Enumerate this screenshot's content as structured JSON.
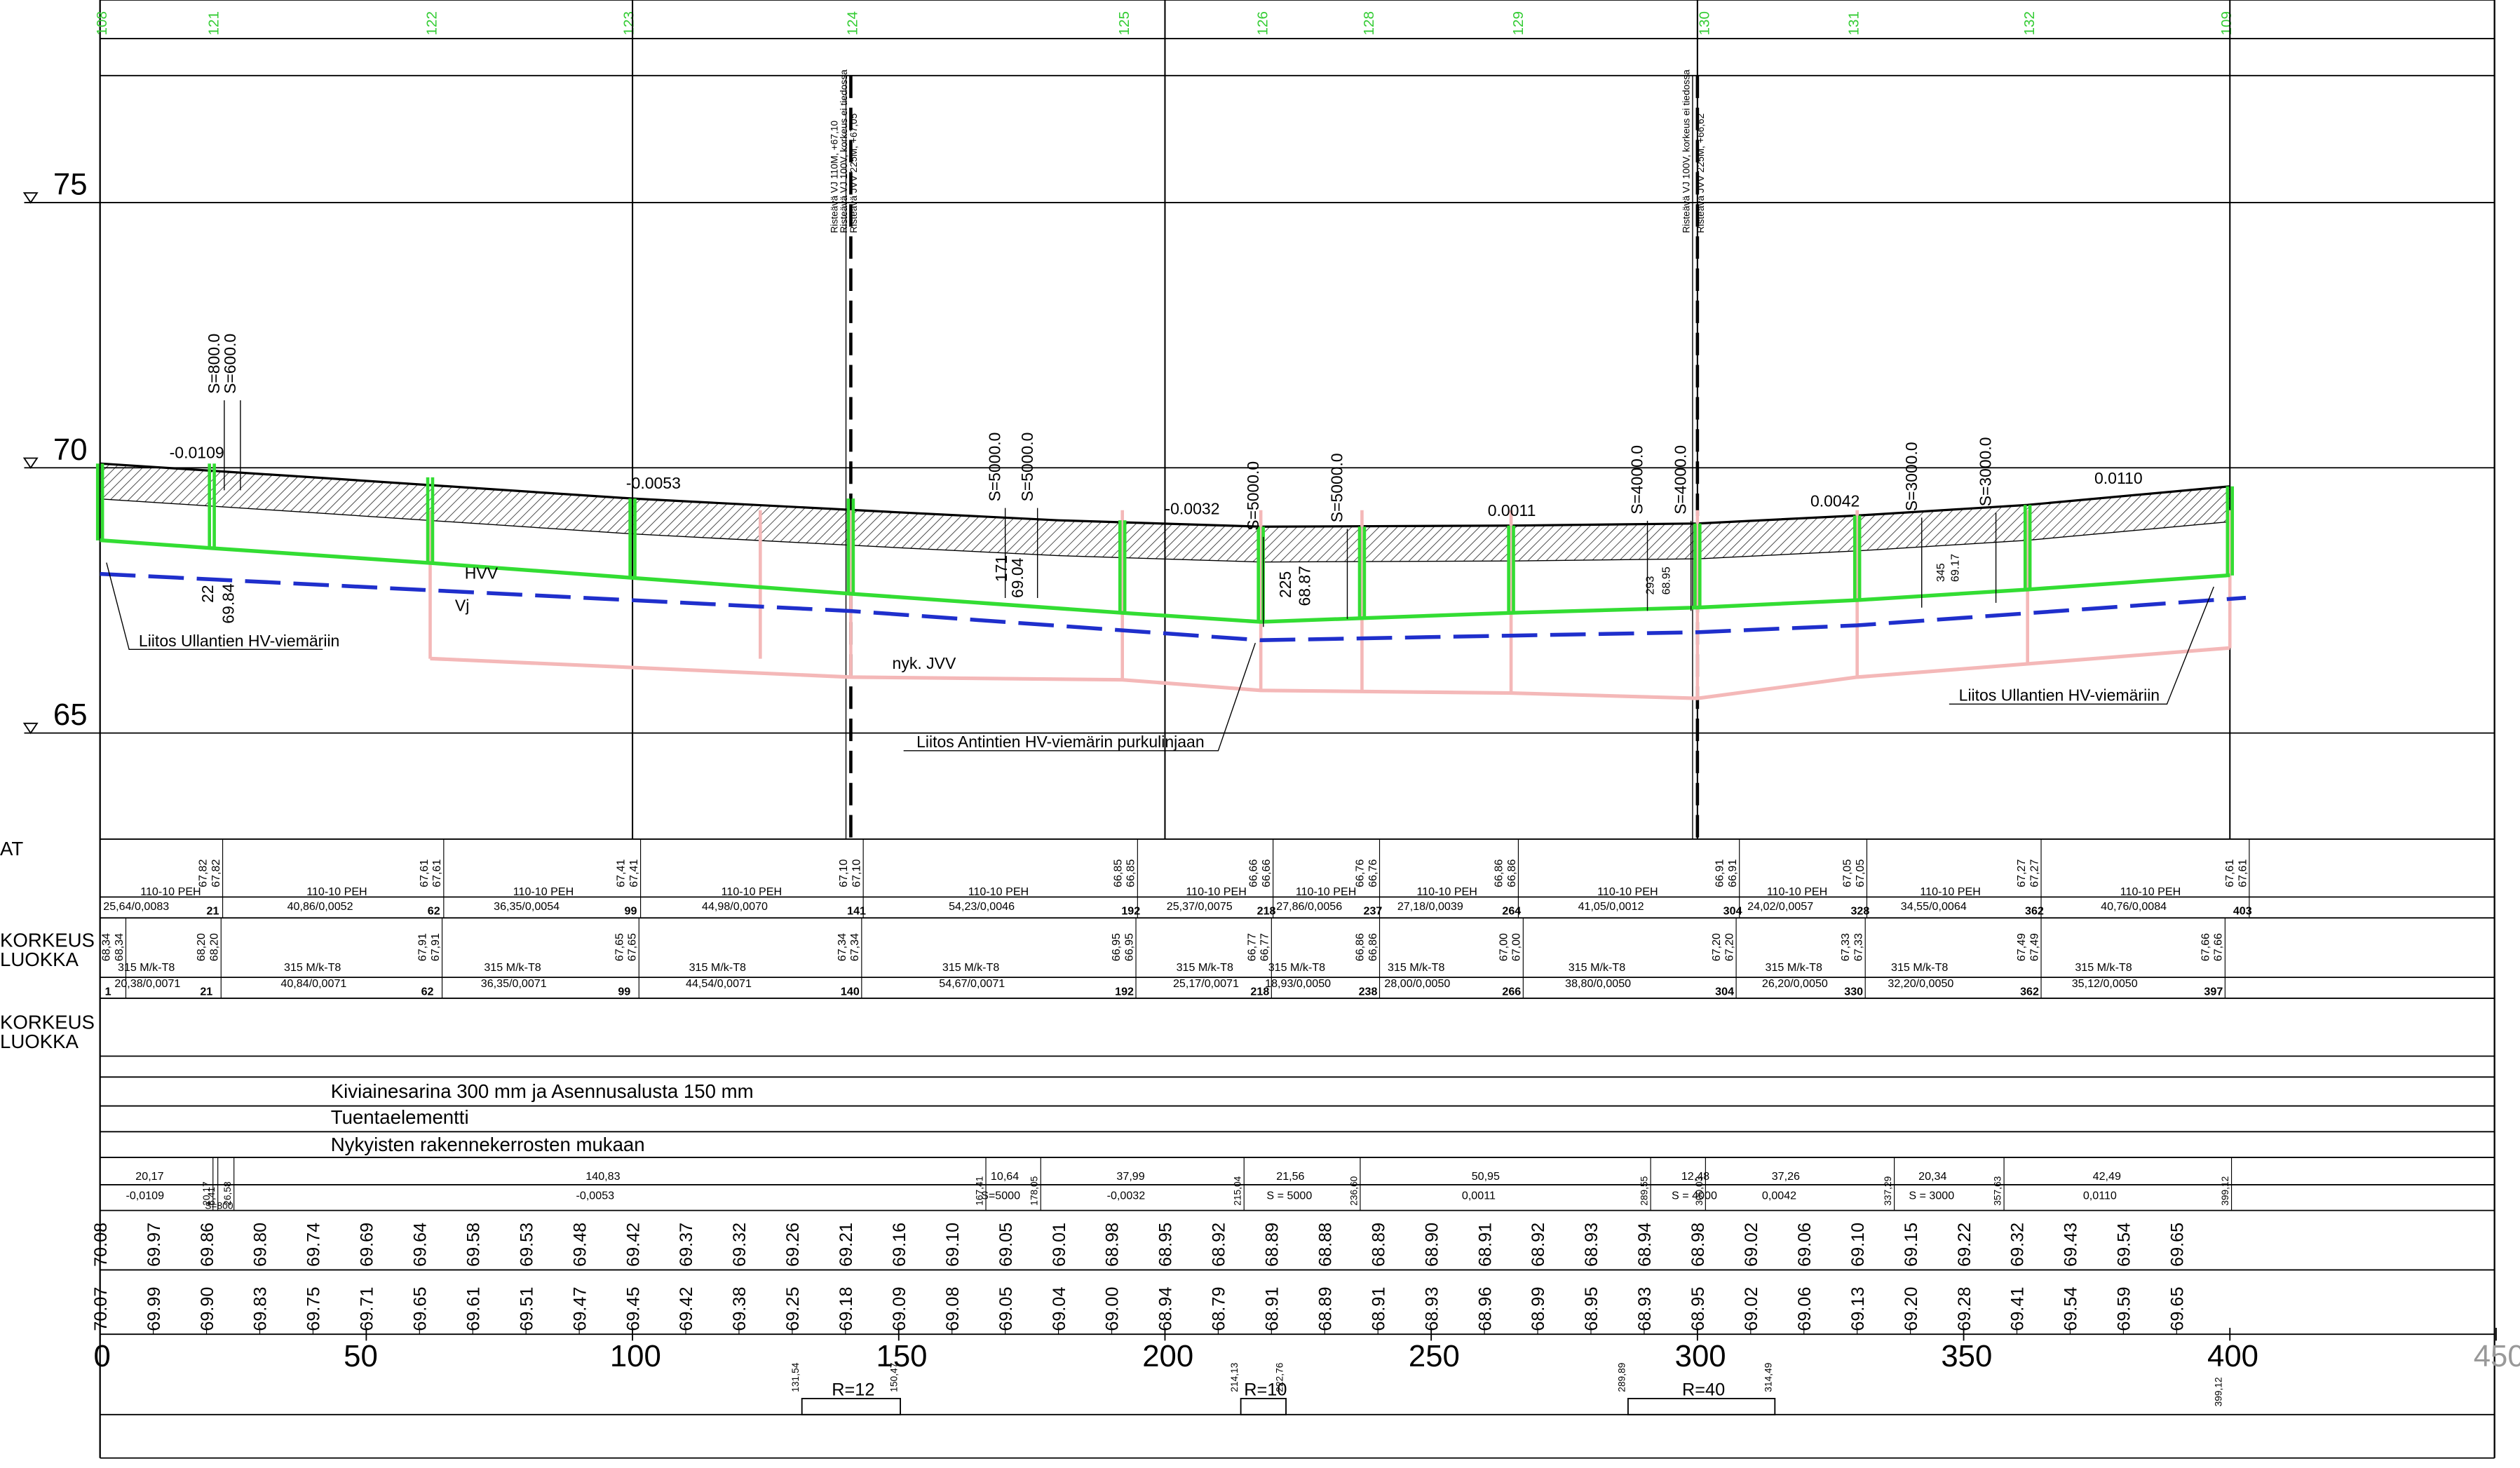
{
  "elevation_labels": [
    "75",
    "70",
    "65"
  ],
  "station_ids": [
    "108",
    "121",
    "122",
    "123",
    "124",
    "125",
    "126",
    "128",
    "129",
    "130",
    "131",
    "132",
    "109"
  ],
  "side_labels": [
    "AT",
    "KORKEUS",
    "LUOKKA",
    "KORKEUS",
    "LUOKKA"
  ],
  "slopes": [
    "-0.0109",
    "-0.0053",
    "-0.0032",
    "0.0011",
    "0.0042",
    "0.0110"
  ],
  "curves": {
    "a": "S=800.0",
    "b": "S=600.0",
    "c": "S=5000.0",
    "d": "S=5000.0",
    "e": "S=5000.0",
    "f": "S=5000.0",
    "g": "S=4000.0",
    "h": "S=4000.0",
    "i": "S=3000.0",
    "j": "S=3000.0"
  },
  "pipe_labels": {
    "hvv": "HVV",
    "vj": "Vj",
    "jvv": "nyk. JVV"
  },
  "callouts": {
    "left": "Liitos Ullantien HV-viemäriin",
    "mid": "Liitos Antintien HV-viemärin purkulinjaan",
    "right": "Liitos Ullantien HV-viemäriin"
  },
  "crossings": {
    "c1": [
      "Risteävä VJ 110M, +67,10",
      "Risteävä VJ 100V, korkeus ei tiedossa",
      "Risteävä JVV 225M, +67,05"
    ],
    "c2": [
      "Risteävä VJ 100V, korkeus ei tiedossa",
      "Risteävä JVV 225M, +66,62"
    ]
  },
  "small_marks": {
    "m1a": "22",
    "m1b": "69.84",
    "m2a": "171",
    "m2b": "69.04",
    "m3a": "225",
    "m3b": "68.87",
    "m4a": "293",
    "m4b": "68.95",
    "m5a": "345",
    "m5b": "69.17"
  },
  "hv_row": {
    "spec": [
      "110-10 PEH",
      "110-10 PEH",
      "110-10 PEH",
      "110-10 PEH",
      "110-10 PEH",
      "110-10 PEH",
      "110-10 PEH",
      "110-10 PEH",
      "110-10 PEH",
      "110-10 PEH",
      "110-10 PEH",
      "110-10 PEH"
    ],
    "lenslope": [
      "25,64/0,0083",
      "40,86/0,0052",
      "36,35/0,0054",
      "44,98/0,0070",
      "54,23/0,0046",
      "25,37/0,0075",
      "27,86/0,0056",
      "27,18/0,0039",
      "41,05/0,0012",
      "24,02/0,0057",
      "34,55/0,0064",
      "40,76/0,0084"
    ],
    "chain": [
      "21",
      "62",
      "99",
      "141",
      "192",
      "218",
      "237",
      "264",
      "304",
      "328",
      "362",
      "403"
    ],
    "heights": [
      "67,82",
      "67,61",
      "67,41",
      "67,10",
      "66,85",
      "66,66",
      "66,76",
      "66,86",
      "66,91",
      "67,05",
      "67,27",
      "67,61"
    ]
  },
  "vj_row": {
    "spec": [
      "315 M/k-T8",
      "315 M/k-T8",
      "315 M/k-T8",
      "315 M/k-T8",
      "315 M/k-T8",
      "315 M/k-T8",
      "315 M/k-T8",
      "315 M/k-T8",
      "315 M/k-T8",
      "315 M/k-T8",
      "315 M/k-T8",
      "315 M/k-T8"
    ],
    "lenslope": [
      "20,38/0,0071",
      "40,84/0,0071",
      "36,35/0,0071",
      "44,54/0,0071",
      "54,67/0,0071",
      "25,17/0,0071",
      "18,93/0,0050",
      "28,00/0,0050",
      "38,80/0,0050",
      "26,20/0,0050",
      "32,20/0,0050",
      "35,12/0,0050"
    ],
    "chain": [
      "1",
      "21",
      "62",
      "99",
      "140",
      "192",
      "218",
      "238",
      "266",
      "304",
      "330",
      "362",
      "397"
    ],
    "heights": [
      "68,34",
      "68,20",
      "67,91",
      "67,65",
      "67,34",
      "66,95",
      "66,77",
      "66,86",
      "67,00",
      "67,20",
      "67,33",
      "67,49",
      "67,66"
    ]
  },
  "layers": [
    "Kiviainesarina 300 mm ja Asennusalusta 150 mm",
    "Tuentaelementti",
    "Nykyisten rakennekerrosten mukaan"
  ],
  "grade_row": {
    "lengths": [
      "20,17",
      "140,83",
      "10,64",
      "37,99",
      "21,56",
      "50,95",
      "12,48",
      "37,26",
      "20,34",
      "42,49"
    ],
    "slopes": [
      "-0,0109",
      "-0,0053",
      "S=5000",
      "-0,0032",
      "S = 5000",
      "0,0011",
      "S = 4000",
      "0,0042",
      "S = 3000",
      "0,0110"
    ],
    "marks": [
      "6,41",
      "20,17",
      "26,58",
      "167,41",
      "178,05",
      "215,04",
      "236,60",
      "289,55",
      "300,03",
      "337,29",
      "357,63",
      "399,12"
    ],
    "s800": "S=800"
  },
  "design_elev": [
    "70.08",
    "69.97",
    "69.86",
    "69.80",
    "69.74",
    "69.69",
    "69.64",
    "69.58",
    "69.53",
    "69.48",
    "69.42",
    "69.37",
    "69.32",
    "69.26",
    "69.21",
    "69.16",
    "69.10",
    "69.05",
    "69.01",
    "68.98",
    "68.95",
    "68.92",
    "68.89",
    "68.88",
    "68.89",
    "68.90",
    "68.91",
    "68.92",
    "68.93",
    "68.94",
    "68.98",
    "69.02",
    "69.06",
    "69.10",
    "69.15",
    "69.22",
    "69.32",
    "69.43",
    "69.54",
    "69.65"
  ],
  "existing_elev": [
    "70.07",
    "69.99",
    "69.90",
    "69.83",
    "69.75",
    "69.71",
    "69.65",
    "69.61",
    "69.51",
    "69.47",
    "69.45",
    "69.42",
    "69.38",
    "69.25",
    "69.18",
    "69.09",
    "69.08",
    "69.05",
    "69.04",
    "69.00",
    "68.94",
    "68.79",
    "68.91",
    "68.89",
    "68.91",
    "68.93",
    "68.96",
    "68.99",
    "68.95",
    "68.93",
    "68.95",
    "69.02",
    "69.06",
    "69.13",
    "69.20",
    "69.28",
    "69.41",
    "69.54",
    "69.59",
    "69.65"
  ],
  "chainage_ticks": [
    "0",
    "50",
    "100",
    "150",
    "200",
    "250",
    "300",
    "350",
    "400",
    "450"
  ],
  "horiz_curves": [
    {
      "label": "R=12",
      "start": "131,54",
      "end": "150,47"
    },
    {
      "label": "R=10",
      "start": "214,13",
      "end": "222,76"
    },
    {
      "label": "R=40",
      "start": "289,89",
      "end": "314,49"
    }
  ],
  "end_mark": "399,12",
  "colors": {
    "green_axis": "#33cc33",
    "design": "#33dd33",
    "existing": "#f4b8b8",
    "water": "#1f2fcc",
    "ground": "#000000"
  }
}
